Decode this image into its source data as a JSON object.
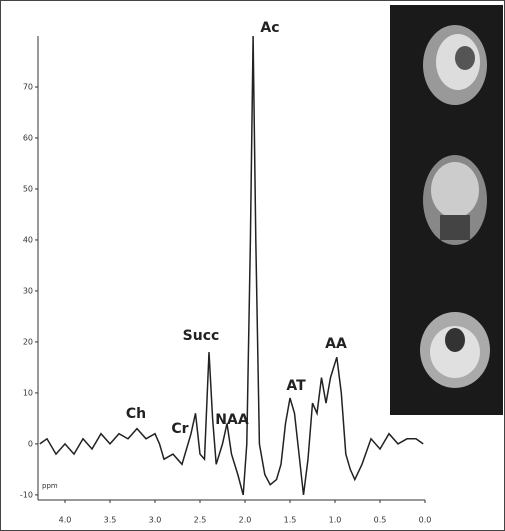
{
  "chart_data": {
    "type": "line",
    "x_axis_label": "ppm",
    "x": [
      4.28,
      4.2,
      4.1,
      4.0,
      3.9,
      3.8,
      3.7,
      3.6,
      3.5,
      3.4,
      3.3,
      3.2,
      3.1,
      3.0,
      2.95,
      2.9,
      2.8,
      2.7,
      2.6,
      2.55,
      2.5,
      2.45,
      2.4,
      2.36,
      2.32,
      2.25,
      2.2,
      2.15,
      2.08,
      2.02,
      1.98,
      1.94,
      1.91,
      1.88,
      1.84,
      1.78,
      1.72,
      1.65,
      1.6,
      1.55,
      1.5,
      1.45,
      1.4,
      1.35,
      1.3,
      1.25,
      1.2,
      1.15,
      1.1,
      1.05,
      0.98,
      0.93,
      0.88,
      0.83,
      0.78,
      0.7,
      0.6,
      0.5,
      0.4,
      0.3,
      0.2,
      0.1,
      0.02
    ],
    "series": [
      {
        "color": "#222222",
        "values": [
          0,
          1,
          -2,
          0,
          -2,
          1,
          -1,
          2,
          0,
          2,
          1,
          3,
          1,
          2,
          0,
          -3,
          -2,
          -4,
          2,
          6,
          -2,
          -3,
          18,
          5,
          -4,
          0,
          4,
          -2,
          -6,
          -10,
          0,
          40,
          80,
          40,
          0,
          -6,
          -8,
          -7,
          -4,
          4,
          9,
          6,
          -2,
          -10,
          -3,
          8,
          6,
          13,
          8,
          13,
          17,
          10,
          -2,
          -5,
          -7,
          -4,
          1,
          -1,
          2,
          0,
          1,
          1,
          0
        ]
      }
    ],
    "xlim": [
      4.3,
      0.0
    ],
    "xticks": [
      {
        "value": 4.0,
        "label": "4.0"
      },
      3.5,
      {
        "value": 3.0,
        "label": "3.0"
      },
      2.5,
      {
        "value": 2.0,
        "label": "2.0"
      },
      1.5,
      {
        "value": 1.0,
        "label": "1.0"
      },
      0.5,
      {
        "value": 0.0,
        "label": "0.0"
      }
    ],
    "ylim": [
      -11,
      80
    ],
    "yticks": [
      -10,
      0,
      10,
      20,
      30,
      40,
      50,
      60,
      70
    ],
    "annotations": [
      "Ch",
      "Cr",
      "Succ",
      "NAA",
      "Ac",
      "AT",
      "AA"
    ]
  }
}
